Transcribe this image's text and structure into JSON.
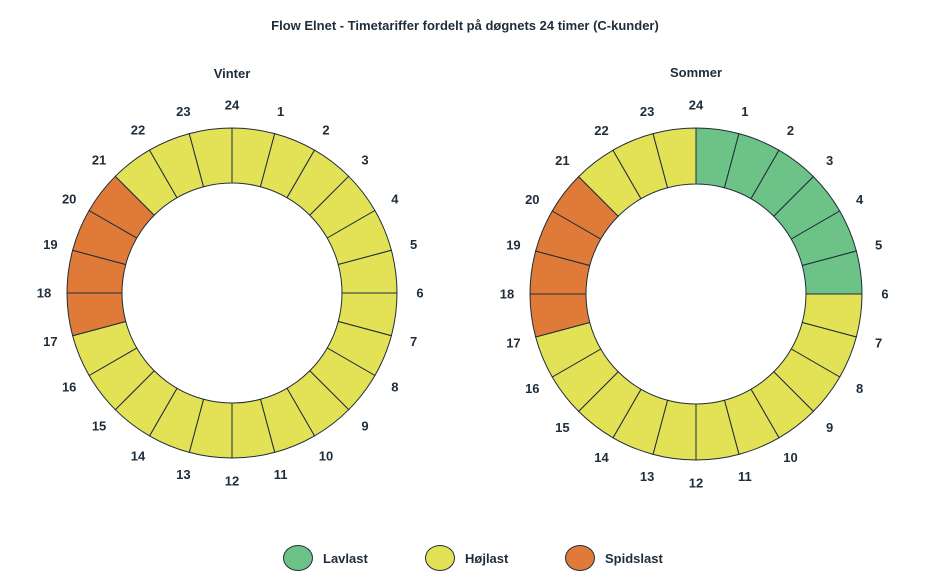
{
  "title": "Flow Elnet - Timetariffer fordelt på døgnets 24 timer (C-kunder)",
  "colors": {
    "Lavlast": "#6cc287",
    "Højlast": "#e3e156",
    "Spidslast": "#e07a38",
    "stroke": "#1f2d3a"
  },
  "legend": [
    {
      "label": "Lavlast",
      "key": "Lavlast"
    },
    {
      "label": "Højlast",
      "key": "Højlast"
    },
    {
      "label": "Spidslast",
      "key": "Spidslast"
    }
  ],
  "chart_data": [
    {
      "type": "pie",
      "variant": "donut",
      "title": "Vinter",
      "hour_labels": [
        "1",
        "2",
        "3",
        "4",
        "5",
        "6",
        "7",
        "8",
        "9",
        "10",
        "11",
        "12",
        "13",
        "14",
        "15",
        "16",
        "17",
        "18",
        "19",
        "20",
        "21",
        "22",
        "23",
        "24"
      ],
      "tariffs": [
        "Højlast",
        "Højlast",
        "Højlast",
        "Højlast",
        "Højlast",
        "Højlast",
        "Højlast",
        "Højlast",
        "Højlast",
        "Højlast",
        "Højlast",
        "Højlast",
        "Højlast",
        "Højlast",
        "Højlast",
        "Højlast",
        "Højlast",
        "Spidslast",
        "Spidslast",
        "Spidslast",
        "Spidslast",
        "Højlast",
        "Højlast",
        "Højlast"
      ]
    },
    {
      "type": "pie",
      "variant": "donut",
      "title": "Sommer",
      "hour_labels": [
        "1",
        "2",
        "3",
        "4",
        "5",
        "6",
        "7",
        "8",
        "9",
        "10",
        "11",
        "12",
        "13",
        "14",
        "15",
        "16",
        "17",
        "18",
        "19",
        "20",
        "21",
        "22",
        "23",
        "24"
      ],
      "tariffs": [
        "Lavlast",
        "Lavlast",
        "Lavlast",
        "Lavlast",
        "Lavlast",
        "Lavlast",
        "Højlast",
        "Højlast",
        "Højlast",
        "Højlast",
        "Højlast",
        "Højlast",
        "Højlast",
        "Højlast",
        "Højlast",
        "Højlast",
        "Højlast",
        "Spidslast",
        "Spidslast",
        "Spidslast",
        "Spidslast",
        "Højlast",
        "Højlast",
        "Højlast"
      ]
    }
  ]
}
